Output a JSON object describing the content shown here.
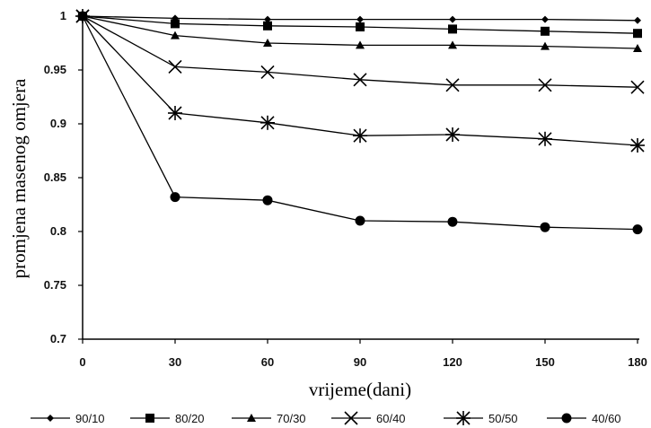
{
  "chart_data": {
    "type": "line",
    "title": "",
    "xlabel": "vrijeme(dani)",
    "ylabel": "promjena masenog omjera",
    "xlim": [
      0,
      180
    ],
    "ylim": [
      0.7,
      1.0
    ],
    "x": [
      0,
      30,
      60,
      90,
      120,
      150,
      180
    ],
    "x_ticks": [
      "0",
      "30",
      "60",
      "90",
      "120",
      "150",
      "180"
    ],
    "y_ticks": [
      "0.7",
      "0.75",
      "0.8",
      "0.85",
      "0.9",
      "0.95",
      "1"
    ],
    "grid": false,
    "legend_position": "bottom",
    "series": [
      {
        "name": "90/10",
        "marker": "diamond",
        "values": [
          1.0,
          0.998,
          0.997,
          0.997,
          0.997,
          0.997,
          0.996
        ]
      },
      {
        "name": "80/20",
        "marker": "square",
        "values": [
          1.0,
          0.993,
          0.991,
          0.99,
          0.988,
          0.986,
          0.984
        ]
      },
      {
        "name": "70/30",
        "marker": "triangle",
        "values": [
          1.0,
          0.982,
          0.975,
          0.973,
          0.973,
          0.972,
          0.97
        ]
      },
      {
        "name": "60/40",
        "marker": "x",
        "values": [
          1.0,
          0.953,
          0.948,
          0.941,
          0.936,
          0.936,
          0.934
        ]
      },
      {
        "name": "50/50",
        "marker": "asterisk",
        "values": [
          1.0,
          0.91,
          0.901,
          0.889,
          0.89,
          0.886,
          0.88
        ]
      },
      {
        "name": "40/60",
        "marker": "circle",
        "values": [
          1.0,
          0.832,
          0.829,
          0.81,
          0.809,
          0.804,
          0.802
        ]
      }
    ]
  }
}
